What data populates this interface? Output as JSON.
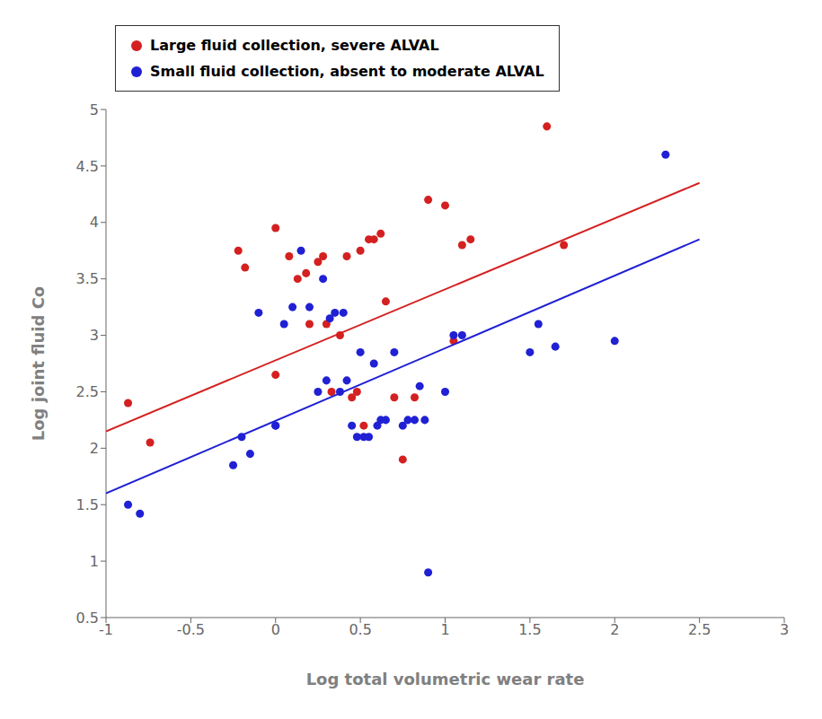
{
  "chart_data": {
    "type": "scatter",
    "xlabel": "Log total volumetric wear rate",
    "ylabel": "Log joint fluid Co",
    "xlim": [
      -1.0,
      3.0
    ],
    "ylim": [
      0.5,
      5.0
    ],
    "xticks": [
      -1,
      -0.5,
      0,
      0.5,
      1,
      1.5,
      2,
      2.5,
      3
    ],
    "yticks": [
      0.5,
      1,
      1.5,
      2,
      2.5,
      3,
      3.5,
      4,
      4.5,
      5
    ],
    "grid": false,
    "legend": "top",
    "series": [
      {
        "name": "Large fluid collection, severe ALVAL",
        "type": "scatter",
        "marker": "circle",
        "color": "#d42020",
        "x": [
          -0.87,
          -0.74,
          -0.22,
          -0.18,
          0.0,
          0.0,
          0.08,
          0.13,
          0.18,
          0.2,
          0.25,
          0.28,
          0.3,
          0.33,
          0.38,
          0.42,
          0.45,
          0.48,
          0.5,
          0.52,
          0.55,
          0.58,
          0.62,
          0.65,
          0.7,
          0.75,
          0.82,
          0.9,
          1.0,
          1.05,
          1.1,
          1.15,
          1.6,
          1.7
        ],
        "values": [
          2.4,
          2.05,
          3.75,
          3.6,
          2.65,
          3.95,
          3.7,
          3.5,
          3.55,
          3.1,
          3.65,
          3.7,
          3.1,
          2.5,
          3.0,
          3.7,
          2.45,
          2.5,
          3.75,
          2.2,
          3.85,
          3.85,
          3.9,
          3.3,
          2.45,
          1.9,
          2.45,
          4.2,
          4.15,
          2.95,
          3.8,
          3.85,
          4.85,
          3.8
        ]
      },
      {
        "name": "Small fluid collection, absent to moderate ALVAL",
        "type": "scatter",
        "marker": "circle",
        "color": "#2020d4",
        "x": [
          -0.87,
          -0.8,
          -0.25,
          -0.2,
          -0.15,
          -0.1,
          0.0,
          0.0,
          0.05,
          0.1,
          0.15,
          0.2,
          0.25,
          0.28,
          0.3,
          0.32,
          0.35,
          0.38,
          0.4,
          0.42,
          0.45,
          0.48,
          0.5,
          0.52,
          0.55,
          0.58,
          0.6,
          0.62,
          0.65,
          0.7,
          0.75,
          0.78,
          0.82,
          0.85,
          0.88,
          0.9,
          1.0,
          1.05,
          1.1,
          1.5,
          1.55,
          1.65,
          2.0,
          2.3
        ],
        "values": [
          1.5,
          1.42,
          1.85,
          2.1,
          1.95,
          3.2,
          2.2,
          2.2,
          3.1,
          3.25,
          3.75,
          3.25,
          2.5,
          3.5,
          2.6,
          3.15,
          3.2,
          2.5,
          3.2,
          2.6,
          2.2,
          2.1,
          2.85,
          2.1,
          2.1,
          2.75,
          2.2,
          2.25,
          2.25,
          2.85,
          2.2,
          2.25,
          2.25,
          2.55,
          2.25,
          0.9,
          2.5,
          3.0,
          3.0,
          2.85,
          3.1,
          2.9,
          2.95,
          4.6
        ]
      },
      {
        "type": "line",
        "line_style": "solid",
        "color": "#d42020",
        "x": [
          -1.0,
          2.5
        ],
        "values": [
          2.15,
          4.35
        ]
      },
      {
        "type": "line",
        "line_style": "solid",
        "color": "#2020d4",
        "x": [
          -1.0,
          2.5
        ],
        "values": [
          1.6,
          3.85
        ]
      }
    ]
  }
}
